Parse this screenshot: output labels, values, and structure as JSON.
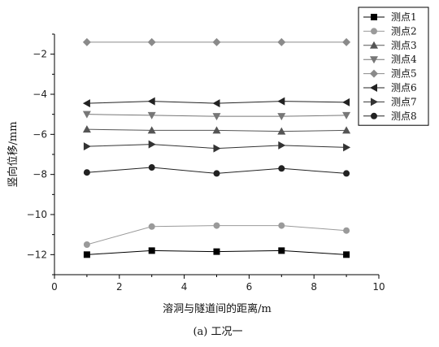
{
  "chart_data": {
    "type": "line",
    "xlabel": "溶洞与隧道间的距离/m",
    "ylabel": "竖向位移/mm",
    "caption": "(a) 工况一",
    "xlim": [
      0,
      10
    ],
    "ylim": [
      -13,
      -1
    ],
    "xticks": [
      0,
      2,
      4,
      6,
      8,
      10
    ],
    "yticks": [
      -12,
      -10,
      -8,
      -6,
      -4,
      -2
    ],
    "legend_position": "top-right",
    "grid": false,
    "x": [
      1,
      3,
      5,
      7,
      9
    ],
    "series": [
      {
        "name": "测点1",
        "marker": "square",
        "color": "#000000",
        "values": [
          -12.0,
          -11.8,
          -11.85,
          -11.8,
          -12.0
        ]
      },
      {
        "name": "测点2",
        "marker": "circle",
        "color": "#9a9a9a",
        "values": [
          -11.5,
          -10.6,
          -10.55,
          -10.55,
          -10.8
        ]
      },
      {
        "name": "测点3",
        "marker": "triangle-up",
        "color": "#555555",
        "values": [
          -5.75,
          -5.8,
          -5.8,
          -5.85,
          -5.8
        ]
      },
      {
        "name": "测点4",
        "marker": "triangle-down",
        "color": "#777777",
        "values": [
          -5.0,
          -5.05,
          -5.1,
          -5.1,
          -5.05
        ]
      },
      {
        "name": "测点5",
        "marker": "diamond",
        "color": "#8a8a8a",
        "values": [
          -1.4,
          -1.4,
          -1.4,
          -1.4,
          -1.4
        ]
      },
      {
        "name": "测点6",
        "marker": "triangle-left",
        "color": "#222222",
        "values": [
          -4.45,
          -4.35,
          -4.45,
          -4.35,
          -4.4
        ]
      },
      {
        "name": "测点7",
        "marker": "triangle-right",
        "color": "#333333",
        "values": [
          -6.6,
          -6.5,
          -6.7,
          -6.55,
          -6.65
        ]
      },
      {
        "name": "测点8",
        "marker": "circle",
        "color": "#222222",
        "values": [
          -7.9,
          -7.65,
          -7.95,
          -7.7,
          -7.95
        ]
      }
    ]
  }
}
